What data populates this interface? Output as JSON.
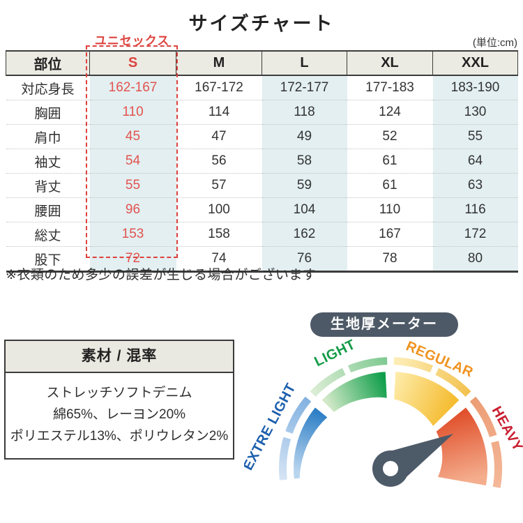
{
  "title": "サイズチャート",
  "unit_label": "(単位:cm)",
  "unisex_label": "ユニセックス",
  "note": "※衣類のため多少の誤差が生じる場合がございます",
  "size_table": {
    "columns": [
      "部位",
      "S",
      "M",
      "L",
      "XL",
      "XXL"
    ],
    "rows": [
      {
        "label": "対応身長",
        "values": [
          "162-167",
          "167-172",
          "172-177",
          "177-183",
          "183-190"
        ]
      },
      {
        "label": "胸囲",
        "values": [
          "110",
          "114",
          "118",
          "124",
          "130"
        ]
      },
      {
        "label": "肩巾",
        "values": [
          "45",
          "47",
          "49",
          "52",
          "55"
        ]
      },
      {
        "label": "袖丈",
        "values": [
          "54",
          "56",
          "58",
          "61",
          "64"
        ]
      },
      {
        "label": "背丈",
        "values": [
          "55",
          "57",
          "59",
          "61",
          "63"
        ]
      },
      {
        "label": "腰囲",
        "values": [
          "96",
          "100",
          "104",
          "110",
          "116"
        ]
      },
      {
        "label": "総丈",
        "values": [
          "153",
          "158",
          "162",
          "167",
          "172"
        ]
      },
      {
        "label": "股下",
        "values": [
          "72",
          "74",
          "76",
          "78",
          "80"
        ]
      }
    ],
    "highlighted_column": "S",
    "highlight_text_color": "#e25350",
    "tint_color": "#e3eff1",
    "header_bg": "#ebebe3"
  },
  "material_box": {
    "header": "素材 / 混率",
    "lines": [
      "ストレッチソフトデニム",
      "綿65%、レーヨン20%",
      "ポリエステル13%、ポリウレタン2%"
    ]
  },
  "gauge": {
    "title": "生地厚メーター",
    "title_bg": "#4d5966",
    "needle_color": "#4d5a68",
    "needle_points_to": "HEAVY",
    "segments": [
      {
        "label": "EXTRE LIGHT",
        "label_color": "#1d5fad",
        "wedge_from": "#b9d5ee",
        "wedge_to": "#2e7fc6",
        "ring_from": "#d6e4f5",
        "ring_to": "#7fb0e0"
      },
      {
        "label": "LIGHT",
        "label_color": "#149c47",
        "wedge_from": "#d3e9c9",
        "wedge_to": "#0f9e4a",
        "ring_from": "#e0efd8",
        "ring_to": "#7cc88f"
      },
      {
        "label": "REGULAR",
        "label_color": "#ef9320",
        "wedge_from": "#fdeaa6",
        "wedge_to": "#f5bc30",
        "ring_from": "#fdf0bd",
        "ring_to": "#f2c04a"
      },
      {
        "label": "HEAVY",
        "label_color": "#c91f30",
        "wedge_from": "#e1512d",
        "wedge_to": "#f4ae8e",
        "ring_from": "#ec9c73",
        "ring_to": "#f4b89a"
      }
    ]
  },
  "chart_data": [
    {
      "type": "table",
      "title": "サイズチャート",
      "unit": "cm",
      "columns": [
        "部位",
        "S",
        "M",
        "L",
        "XL",
        "XXL"
      ],
      "rows": [
        [
          "対応身長",
          "162-167",
          "167-172",
          "172-177",
          "177-183",
          "183-190"
        ],
        [
          "胸囲",
          110,
          114,
          118,
          124,
          130
        ],
        [
          "肩巾",
          45,
          47,
          49,
          52,
          55
        ],
        [
          "袖丈",
          54,
          56,
          58,
          61,
          64
        ],
        [
          "背丈",
          55,
          57,
          59,
          61,
          63
        ],
        [
          "腰囲",
          96,
          100,
          104,
          110,
          116
        ],
        [
          "総丈",
          153,
          158,
          162,
          167,
          172
        ],
        [
          "股下",
          72,
          74,
          76,
          78,
          80
        ]
      ],
      "highlighted_column": "S",
      "highlight_annotation": "ユニセックス"
    },
    {
      "type": "gauge",
      "title": "生地厚メーター",
      "scale": [
        "EXTRE LIGHT",
        "LIGHT",
        "REGULAR",
        "HEAVY"
      ],
      "value": "HEAVY"
    }
  ]
}
